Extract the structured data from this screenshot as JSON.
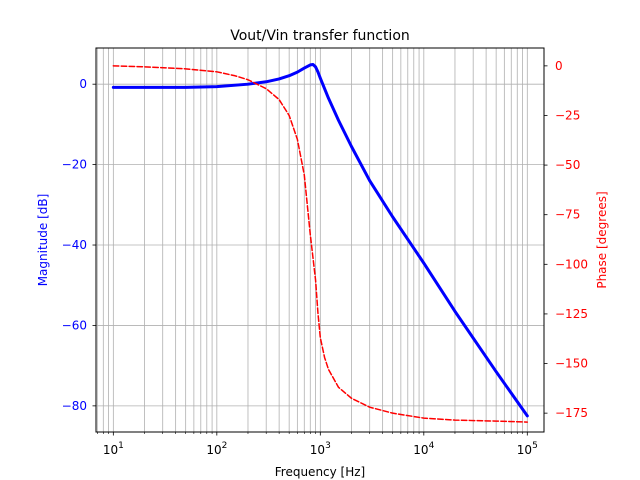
{
  "chart_data": {
    "type": "line",
    "title": "Vout/Vin transfer function",
    "xlabel": "Frequency [Hz]",
    "ylabel": "Magnitude [dB]",
    "y2label": "Phase [degrees]",
    "xscale": "log",
    "xlim": [
      6.8,
      145000
    ],
    "ylim": [
      -86.5,
      9.0
    ],
    "y2lim": [
      -184.5,
      9.0
    ],
    "grid": true,
    "x_ticks": [
      {
        "base": "10",
        "exp": "1",
        "value": 10
      },
      {
        "base": "10",
        "exp": "2",
        "value": 100
      },
      {
        "base": "10",
        "exp": "3",
        "value": 1000
      },
      {
        "base": "10",
        "exp": "4",
        "value": 10000
      },
      {
        "base": "10",
        "exp": "5",
        "value": 100000
      }
    ],
    "y_ticks": [
      0,
      -20,
      -40,
      -60,
      -80
    ],
    "y2_ticks": [
      0,
      -25,
      -50,
      -75,
      -100,
      -125,
      -150,
      -175
    ],
    "colors": {
      "magnitude": "#0000ff",
      "phase": "#ff0000",
      "grid": "#b0b0b0"
    },
    "series": [
      {
        "axis": "left",
        "style": "solid",
        "x": [
          10,
          20,
          50,
          100,
          200,
          300,
          400,
          500,
          600,
          700,
          800,
          850,
          900,
          950,
          1000,
          1200,
          1500,
          2000,
          3000,
          5000,
          10000,
          20000,
          50000,
          100000
        ],
        "values": [
          -0.8,
          -0.8,
          -0.8,
          -0.6,
          0.0,
          0.6,
          1.3,
          2.1,
          3.0,
          4.0,
          4.8,
          4.9,
          4.3,
          3.0,
          1.5,
          -3.5,
          -9.0,
          -15.5,
          -24.0,
          -33.0,
          -44.5,
          -56.5,
          -71.5,
          -82.5
        ]
      },
      {
        "axis": "right",
        "style": "dashed",
        "x": [
          10,
          20,
          50,
          100,
          150,
          200,
          300,
          400,
          500,
          600,
          700,
          800,
          900,
          950,
          1000,
          1100,
          1200,
          1500,
          2000,
          3000,
          5000,
          10000,
          20000,
          50000,
          100000
        ],
        "values": [
          0.0,
          -0.5,
          -1.5,
          -3.0,
          -5.0,
          -7.0,
          -11.5,
          -17.0,
          -25.0,
          -37.0,
          -55.0,
          -85.0,
          -108.0,
          -125.0,
          -137.0,
          -147.0,
          -153.0,
          -162.0,
          -167.5,
          -172.0,
          -175.0,
          -177.5,
          -178.5,
          -179.0,
          -179.5
        ]
      }
    ]
  }
}
